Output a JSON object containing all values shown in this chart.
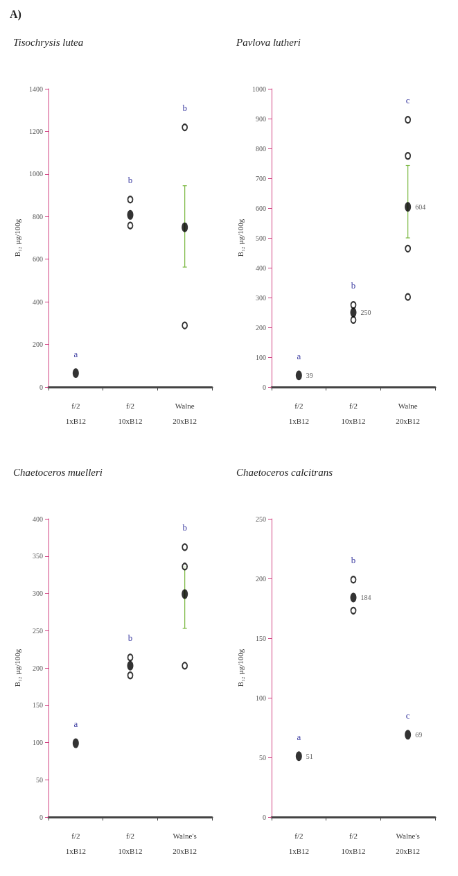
{
  "chart_data": [
    {
      "type": "scatter",
      "title": "Tisochrysis lutea",
      "ylabel": "B₁₂ µg/100g",
      "categories": [
        "f/2\n1xB12",
        "f/2\n10xB12",
        "Walne\n20xB12"
      ],
      "ylim": [
        0,
        1400
      ],
      "yticks": [
        0,
        200,
        400,
        600,
        800,
        1000,
        1200,
        1400
      ],
      "marker": "circle",
      "series": [
        {
          "color": "#000000",
          "values": [
            65,
            808,
            750
          ],
          "errors": [
            null,
            null,
            [
              563,
              945
            ]
          ]
        },
        {
          "color": "#000000",
          "x": [
            "f/2\n10xB12",
            "f/2\n10xB12",
            "Walne\n20xB12",
            "Walne\n20xB12"
          ],
          "values": [
            880,
            758,
            1219,
            289
          ]
        }
      ],
      "annotations": [
        "A)",
        "a",
        "b",
        "b"
      ]
    },
    {
      "type": "scatter",
      "title": "Pavlova lutheri",
      "ylabel": "B₁₂ µg/100g",
      "categories": [
        "f/2\n1xB12",
        "f/2\n10xB12",
        "Walne\n20xB12"
      ],
      "ylim": [
        0,
        1000
      ],
      "yticks": [
        0,
        100,
        200,
        300,
        400,
        500,
        600,
        700,
        800,
        900,
        1000
      ],
      "marker": "circle",
      "series": [
        {
          "color": "#000000",
          "values": [
            39,
            250,
            604
          ],
          "value_labels": [
            "39",
            "250",
            "604"
          ],
          "errors": [
            null,
            null,
            [
              500,
              743
            ]
          ]
        },
        {
          "color": "#000000",
          "x": [
            "f/2\n10xB12",
            "f/2\n10xB12",
            "Walne\n20xB12",
            "Walne\n20xB12",
            "Walne\n20xB12",
            "Walne\n20xB12"
          ],
          "values": [
            275,
            225,
            896,
            775,
            464,
            302
          ]
        }
      ],
      "annotations": [
        "a",
        "b",
        "c"
      ]
    },
    {
      "type": "scatter",
      "title": "Chaetoceros muelleri",
      "ylabel": "B₁₂ µg/100g",
      "categories": [
        "f/2\n1xB12",
        "f/2\n10xB12",
        "Walne's\n20xB12"
      ],
      "ylim": [
        0,
        400
      ],
      "yticks": [
        0,
        50,
        100,
        150,
        200,
        250,
        300,
        350,
        400
      ],
      "marker": "circle",
      "series": [
        {
          "color": "#000000",
          "values": [
            99,
            203,
            299
          ],
          "errors": [
            null,
            null,
            [
              253,
              336
            ]
          ]
        },
        {
          "color": "#000000",
          "x": [
            "f/2\n10xB12",
            "f/2\n10xB12",
            "Walne's\n20xB12",
            "Walne's\n20xB12",
            "Walne's\n20xB12"
          ],
          "values": [
            214,
            190,
            362,
            336,
            203
          ]
        }
      ],
      "annotations": [
        "a",
        "b",
        "b"
      ]
    },
    {
      "type": "scatter",
      "title": "Chaetoceros calcitrans",
      "ylabel": "B₁₂ µg/100g",
      "categories": [
        "f/2\n1xB12",
        "f/2\n10xB12",
        "Walne's\n20xB12"
      ],
      "ylim": [
        0,
        250
      ],
      "yticks": [
        0,
        50,
        100,
        150,
        200,
        250
      ],
      "marker": "circle",
      "series": [
        {
          "color": "#000000",
          "values": [
            51,
            184,
            69
          ],
          "value_labels": [
            "51",
            "184",
            "69"
          ]
        },
        {
          "color": "#000000",
          "x": [
            "f/2\n10xB12",
            "f/2\n10xB12"
          ],
          "values": [
            199,
            173
          ]
        }
      ],
      "annotations": [
        "a",
        "b",
        "c"
      ]
    }
  ]
}
